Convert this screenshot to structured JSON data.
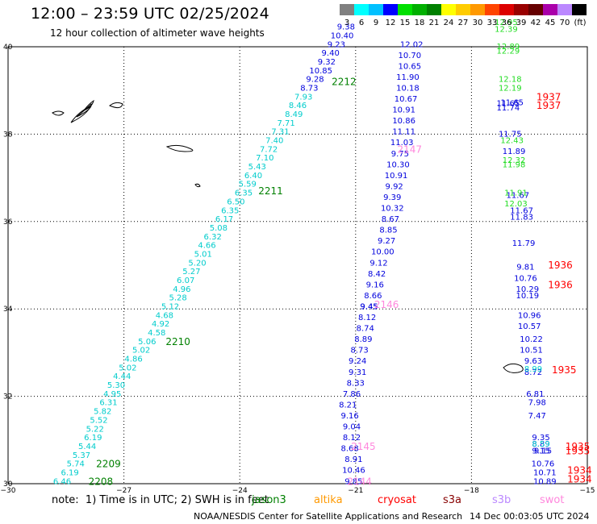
{
  "header": {
    "title": "12:00 – 23:59 UTC 02/25/2024",
    "subtitle": "12 hour collection of altimeter wave heights"
  },
  "colorbar": {
    "labels": [
      "3",
      "6",
      "9",
      "12",
      "15",
      "18",
      "21",
      "24",
      "27",
      "30",
      "33",
      "36",
      "39",
      "42",
      "45",
      "70",
      "(ft)"
    ],
    "colors": [
      "#808080",
      "#00ffff",
      "#00c0ff",
      "#0000ff",
      "#00e000",
      "#00b000",
      "#008000",
      "#ffff00",
      "#ffcc00",
      "#ff9900",
      "#ff4400",
      "#dd0000",
      "#990000",
      "#660000",
      "#aa00aa",
      "#bb88ff",
      "#000000"
    ]
  },
  "footer": {
    "note_prefix": "note:  1) Time is in UTC; 2) SWH is in feet",
    "satellites": [
      {
        "name": "jason3",
        "color": "#008000"
      },
      {
        "name": "altika",
        "color": "#ff9900"
      },
      {
        "name": "cryosat",
        "color": "#ff0000"
      },
      {
        "name": "s3a",
        "color": "#880000"
      },
      {
        "name": "s3b",
        "color": "#bb88ff"
      },
      {
        "name": "swot",
        "color": "#ff88dd"
      }
    ],
    "credit": "NOAA/NESDIS Center for Satellite Applications and Research",
    "timestamp": "14 Dec 00:03:05 UTC 2024"
  },
  "chart_data": {
    "type": "scatter",
    "title": "12:00 – 23:59 UTC 02/25/2024",
    "xlim": [
      -30,
      -15
    ],
    "ylim": [
      30,
      40
    ],
    "xticks": [
      -30,
      -27,
      -24,
      -21,
      -18,
      -15
    ],
    "yticks": [
      30,
      32,
      34,
      36,
      38,
      40
    ],
    "xtick_labels": [
      "−30",
      "−27",
      "−24",
      "−21",
      "−18",
      "−15"
    ],
    "ytick_labels": [
      "30",
      "32",
      "34",
      "36",
      "38",
      "40"
    ],
    "grid": "dotted",
    "units": "ft",
    "tracks": [
      {
        "color": "#00cccc",
        "points": [
          [
            -28.6,
            30.05,
            "6.46"
          ],
          [
            -28.4,
            30.25,
            "6.19"
          ],
          [
            -28.25,
            30.45,
            "5.74"
          ],
          [
            -28.1,
            30.65,
            "5.37"
          ],
          [
            -27.95,
            30.85,
            "5.44"
          ],
          [
            -27.8,
            31.05,
            "6.19"
          ],
          [
            -27.75,
            31.25,
            "5.22"
          ],
          [
            -27.65,
            31.45,
            "5.52"
          ],
          [
            -27.55,
            31.65,
            "5.82"
          ],
          [
            -27.4,
            31.85,
            "6.31"
          ],
          [
            -27.3,
            32.05,
            "4.95"
          ],
          [
            -27.2,
            32.25,
            "5.30"
          ],
          [
            -27.05,
            32.45,
            "4.44"
          ],
          [
            -26.9,
            32.65,
            "5.02"
          ],
          [
            -26.75,
            32.85,
            "4.86"
          ],
          [
            -26.55,
            33.05,
            "5.02"
          ],
          [
            -26.4,
            33.25,
            "5.06"
          ],
          [
            -26.15,
            33.45,
            "4.58"
          ],
          [
            -26.05,
            33.65,
            "4.92"
          ],
          [
            -25.95,
            33.85,
            "4.68"
          ],
          [
            -25.8,
            34.05,
            "5.12"
          ],
          [
            -25.6,
            34.25,
            "5.28"
          ],
          [
            -25.5,
            34.45,
            "4.96"
          ],
          [
            -25.4,
            34.65,
            "6.07"
          ],
          [
            -25.25,
            34.85,
            "5.27"
          ],
          [
            -25.1,
            35.05,
            "5.20"
          ],
          [
            -24.95,
            35.25,
            "5.01"
          ],
          [
            -24.85,
            35.45,
            "4.66"
          ],
          [
            -24.7,
            35.65,
            "6.32"
          ],
          [
            -24.55,
            35.85,
            "5.08"
          ],
          [
            -24.4,
            36.05,
            "6.17"
          ],
          [
            -24.25,
            36.25,
            "6.35"
          ],
          [
            -24.1,
            36.45,
            "6.50"
          ],
          [
            -23.9,
            36.65,
            "6.35"
          ],
          [
            -23.8,
            36.85,
            "5.59"
          ],
          [
            -23.65,
            37.05,
            "6.40"
          ],
          [
            -23.55,
            37.25,
            "5.43"
          ],
          [
            -23.35,
            37.45,
            "7.10"
          ],
          [
            -23.25,
            37.65,
            "7.72"
          ],
          [
            -23.1,
            37.85,
            "7.40"
          ],
          [
            -22.95,
            38.05,
            "7.31"
          ],
          [
            -22.8,
            38.25,
            "7.71"
          ],
          [
            -22.6,
            38.45,
            "8.49"
          ],
          [
            -22.5,
            38.65,
            "8.46"
          ],
          [
            -22.35,
            38.85,
            "7.93"
          ]
        ]
      },
      {
        "color": "#0000dd",
        "points": [
          [
            -22.2,
            39.05,
            "8.73"
          ],
          [
            -22.05,
            39.25,
            "9.28"
          ],
          [
            -21.9,
            39.45,
            "10.85"
          ],
          [
            -21.75,
            39.65,
            "9.32"
          ],
          [
            -21.65,
            39.85,
            "9.40"
          ],
          [
            -21.5,
            40.05,
            "9.23"
          ],
          [
            -21.35,
            40.25,
            "10.40"
          ],
          [
            -21.25,
            40.45,
            "9.38"
          ]
        ]
      },
      {
        "color": "#0000dd",
        "points": [
          [
            -21.05,
            30.05,
            "9.85"
          ],
          [
            -21.05,
            30.3,
            "10.46"
          ],
          [
            -21.05,
            30.55,
            "8.91"
          ],
          [
            -21.15,
            30.8,
            "8.68"
          ],
          [
            -21.1,
            31.05,
            "8.12"
          ],
          [
            -21.1,
            31.3,
            "9.04"
          ],
          [
            -21.15,
            31.55,
            "9.16"
          ],
          [
            -21.2,
            31.8,
            "8.21"
          ],
          [
            -21.1,
            32.05,
            "7.86"
          ],
          [
            -21.0,
            32.3,
            "8.33"
          ],
          [
            -20.95,
            32.55,
            "9.31"
          ],
          [
            -20.95,
            32.8,
            "9.24"
          ],
          [
            -20.9,
            33.05,
            "8.73"
          ],
          [
            -20.8,
            33.3,
            "8.89"
          ],
          [
            -20.75,
            33.55,
            "8.74"
          ],
          [
            -20.7,
            33.8,
            "8.12"
          ],
          [
            -20.65,
            34.05,
            "9.45"
          ],
          [
            -20.55,
            34.3,
            "8.66"
          ],
          [
            -20.5,
            34.55,
            "9.16"
          ],
          [
            -20.45,
            34.8,
            "8.42"
          ],
          [
            -20.4,
            35.05,
            "9.12"
          ],
          [
            -20.3,
            35.3,
            "10.00"
          ],
          [
            -20.2,
            35.55,
            "9.27"
          ],
          [
            -20.15,
            35.8,
            "8.85"
          ],
          [
            -20.1,
            36.05,
            "8.67"
          ],
          [
            -20.05,
            36.3,
            "10.32"
          ],
          [
            -20.05,
            36.55,
            "9.39"
          ],
          [
            -20.0,
            36.8,
            "9.92"
          ],
          [
            -19.95,
            37.05,
            "10.91"
          ],
          [
            -19.9,
            37.3,
            "10.30"
          ],
          [
            -19.85,
            37.55,
            "9.75"
          ],
          [
            -19.8,
            37.8,
            "11.03"
          ],
          [
            -19.75,
            38.05,
            "11.11"
          ],
          [
            -19.75,
            38.3,
            "10.86"
          ],
          [
            -19.75,
            38.55,
            "10.91"
          ],
          [
            -19.7,
            38.8,
            "10.67"
          ],
          [
            -19.65,
            39.05,
            "10.18"
          ],
          [
            -19.65,
            39.3,
            "11.90"
          ],
          [
            -19.6,
            39.55,
            "10.65"
          ],
          [
            -19.6,
            39.8,
            "10.70"
          ],
          [
            -19.55,
            40.05,
            "12.02"
          ]
        ]
      },
      {
        "color": "#0000dd",
        "points": [
          [
            -16.1,
            30.05,
            "10.89"
          ],
          [
            -16.1,
            30.25,
            "10.71"
          ],
          [
            -16.15,
            30.45,
            "10.76"
          ],
          [
            -16.15,
            30.75,
            "9.15"
          ],
          [
            -16.2,
            30.9,
            "8.89"
          ],
          [
            -16.2,
            31.05,
            "9.35"
          ],
          [
            -16.3,
            31.55,
            "7.47"
          ],
          [
            -16.3,
            31.85,
            "7.98"
          ],
          [
            -16.35,
            32.05,
            "6.81"
          ],
          [
            -16.4,
            32.55,
            "8.72"
          ],
          [
            -16.4,
            32.8,
            "9.63"
          ],
          [
            -16.45,
            33.05,
            "10.51"
          ],
          [
            -16.45,
            33.3,
            "10.22"
          ],
          [
            -16.5,
            33.6,
            "10.57"
          ],
          [
            -16.5,
            33.85,
            "10.96"
          ],
          [
            -16.55,
            34.3,
            "10.19"
          ],
          [
            -16.55,
            34.45,
            "10.29"
          ],
          [
            -16.6,
            34.7,
            "10.76"
          ],
          [
            -16.6,
            34.95,
            "9.81"
          ],
          [
            -16.65,
            35.5,
            "11.79"
          ],
          [
            -16.7,
            36.1,
            "11.83"
          ],
          [
            -16.7,
            36.25,
            "11.67"
          ],
          [
            -16.8,
            36.6,
            "11.67"
          ],
          [
            -16.9,
            37.6,
            "11.89"
          ],
          [
            -17.0,
            38.0,
            "11.75"
          ],
          [
            -17.05,
            38.6,
            "11.74"
          ],
          [
            -17.05,
            38.7,
            "11.65"
          ]
        ]
      },
      {
        "color": "#22dd22",
        "points": [
          [
            -16.85,
            36.4,
            "12.03"
          ],
          [
            -16.85,
            36.65,
            "11.91"
          ],
          [
            -16.9,
            37.3,
            "11.98"
          ],
          [
            -16.9,
            37.4,
            "12.32"
          ],
          [
            -16.95,
            37.85,
            "12.43"
          ],
          [
            -17.0,
            39.05,
            "12.19"
          ],
          [
            -17.0,
            39.25,
            "12.18"
          ],
          [
            -17.05,
            39.9,
            "12.29"
          ],
          [
            -17.05,
            40.0,
            "12.89"
          ],
          [
            -17.1,
            40.4,
            "12.39"
          ],
          [
            -17.1,
            40.55,
            "12.95"
          ]
        ]
      }
    ],
    "pass_labels": [
      {
        "text": "2212",
        "color": "#008000",
        "x": -21.3,
        "y": 39.2
      },
      {
        "text": "2211",
        "color": "#008000",
        "x": -23.2,
        "y": 36.7
      },
      {
        "text": "2210",
        "color": "#008000",
        "x": -25.6,
        "y": 33.25
      },
      {
        "text": "2209",
        "color": "#008000",
        "x": -27.4,
        "y": 30.45
      },
      {
        "text": "2208",
        "color": "#008000",
        "x": -27.6,
        "y": 30.05
      },
      {
        "text": "2147",
        "color": "#ff88dd",
        "x": -19.6,
        "y": 37.65
      },
      {
        "text": "2146",
        "color": "#ff88dd",
        "x": -20.2,
        "y": 34.1
      },
      {
        "text": "2145",
        "color": "#ff88dd",
        "x": -20.8,
        "y": 30.85
      },
      {
        "text": "2144",
        "color": "#ff88dd",
        "x": -20.9,
        "y": 30.05
      },
      {
        "text": "1937",
        "color": "#ff0000",
        "x": -16.0,
        "y": 38.65
      },
      {
        "text": "1937",
        "color": "#ff0000",
        "x": -16.0,
        "y": 38.85
      },
      {
        "text": "1936",
        "color": "#ff0000",
        "x": -15.7,
        "y": 35.0
      },
      {
        "text": "1936",
        "color": "#ff0000",
        "x": -15.7,
        "y": 34.55
      },
      {
        "text": "1935",
        "color": "#ff0000",
        "x": -15.6,
        "y": 32.6
      },
      {
        "text": "1935",
        "color": "#ff0000",
        "x": -15.25,
        "y": 30.75
      },
      {
        "text": "1935",
        "color": "#ff0000",
        "x": -15.25,
        "y": 30.85
      },
      {
        "text": "1934",
        "color": "#ff0000",
        "x": -15.2,
        "y": 30.1
      },
      {
        "text": "1934",
        "color": "#ff0000",
        "x": -15.2,
        "y": 30.3
      }
    ],
    "extra_values": [
      {
        "text": "11.65",
        "color": "#0000dd",
        "x": -16.95,
        "y": 38.72
      },
      {
        "text": "9.45",
        "color": "#0000dd",
        "x": -20.65,
        "y": 34.05
      },
      {
        "text": "8.59",
        "color": "#00cccc",
        "x": -16.2,
        "y": 30.9
      },
      {
        "text": "8.99",
        "color": "#00cccc",
        "x": -16.4,
        "y": 32.62
      },
      {
        "text": "9.15",
        "color": "#0000dd",
        "x": -16.2,
        "y": 30.75
      }
    ]
  }
}
